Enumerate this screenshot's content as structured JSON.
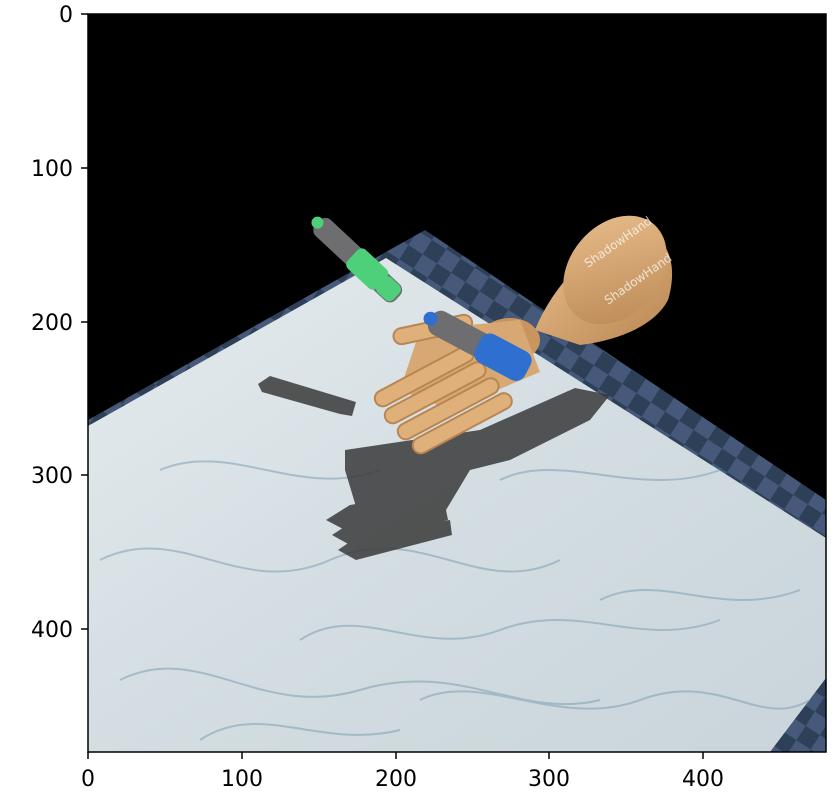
{
  "x_axis": {
    "ticks": [
      {
        "value": 0,
        "label": "0"
      },
      {
        "value": 100,
        "label": "100"
      },
      {
        "value": 200,
        "label": "200"
      },
      {
        "value": 300,
        "label": "300"
      },
      {
        "value": 400,
        "label": "400"
      }
    ],
    "range": [
      0,
      480
    ]
  },
  "y_axis": {
    "ticks": [
      {
        "value": 0,
        "label": "0"
      },
      {
        "value": 100,
        "label": "100"
      },
      {
        "value": 200,
        "label": "200"
      },
      {
        "value": 300,
        "label": "300"
      },
      {
        "value": 400,
        "label": "400"
      }
    ],
    "range": [
      0,
      480
    ],
    "inverted": true
  },
  "scene": {
    "background_color": "#000000",
    "table_border_color": "#2e3f58",
    "table_border_alt_color": "#46597a",
    "marble_color": "#d9e1e5",
    "vein_color": "#7f9fb2",
    "shadow_color": "#3a3a3a",
    "hand_color": "#d8a874",
    "hand_dark_color": "#b98652",
    "green_object_color": "#4ed07a",
    "blue_object_color": "#2f6fd0",
    "object_gray_color": "#6e6e70",
    "objects": [
      "robotic-hand",
      "green-pen",
      "blue-pen",
      "marble-table"
    ]
  }
}
